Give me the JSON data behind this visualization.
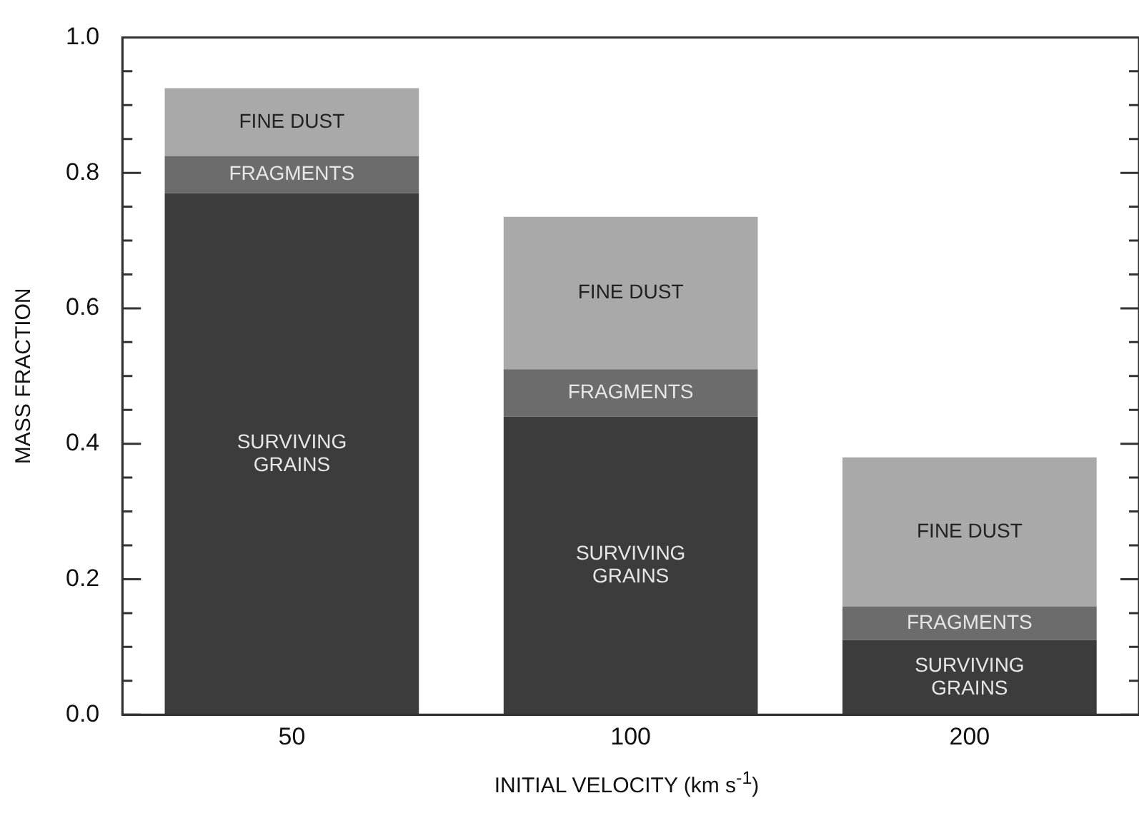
{
  "chart_data": {
    "type": "bar",
    "stacked": true,
    "xlabel": "INITIAL VELOCITY (km s$^{-1}$)",
    "ylabel": "MASS FRACTION",
    "categories": [
      "50",
      "100",
      "200"
    ],
    "series": [
      {
        "name": "SURVIVING GRAINS",
        "color": "#3c3c3c",
        "values": [
          0.77,
          0.44,
          0.11
        ]
      },
      {
        "name": "FRAGMENTS",
        "color": "#6c6c6c",
        "values": [
          0.055,
          0.07,
          0.05
        ]
      },
      {
        "name": "FINE DUST",
        "color": "#a9a9a9",
        "values": [
          0.1,
          0.225,
          0.22
        ]
      }
    ],
    "ylim": [
      0,
      1
    ],
    "yticks": [
      {
        "value": 0,
        "label": "0.0"
      },
      {
        "value": 0.05,
        "label": null
      },
      {
        "value": 0.1,
        "label": null
      },
      {
        "value": 0.15,
        "label": null
      },
      {
        "value": 0.2,
        "label": "0.2"
      },
      {
        "value": 0.25,
        "label": null
      },
      {
        "value": 0.3,
        "label": null
      },
      {
        "value": 0.35,
        "label": null
      },
      {
        "value": 0.4,
        "label": "0.4"
      },
      {
        "value": 0.45,
        "label": null
      },
      {
        "value": 0.5,
        "label": null
      },
      {
        "value": 0.55,
        "label": null
      },
      {
        "value": 0.6,
        "label": "0.6"
      },
      {
        "value": 0.65,
        "label": null
      },
      {
        "value": 0.7,
        "label": null
      },
      {
        "value": 0.75,
        "label": null
      },
      {
        "value": 0.8,
        "label": "0.8"
      },
      {
        "value": 0.85,
        "label": null
      },
      {
        "value": 0.9,
        "label": null
      },
      {
        "value": 0.95,
        "label": null
      },
      {
        "value": 1,
        "label": "1.0"
      }
    ],
    "grid": false,
    "legend": false
  }
}
